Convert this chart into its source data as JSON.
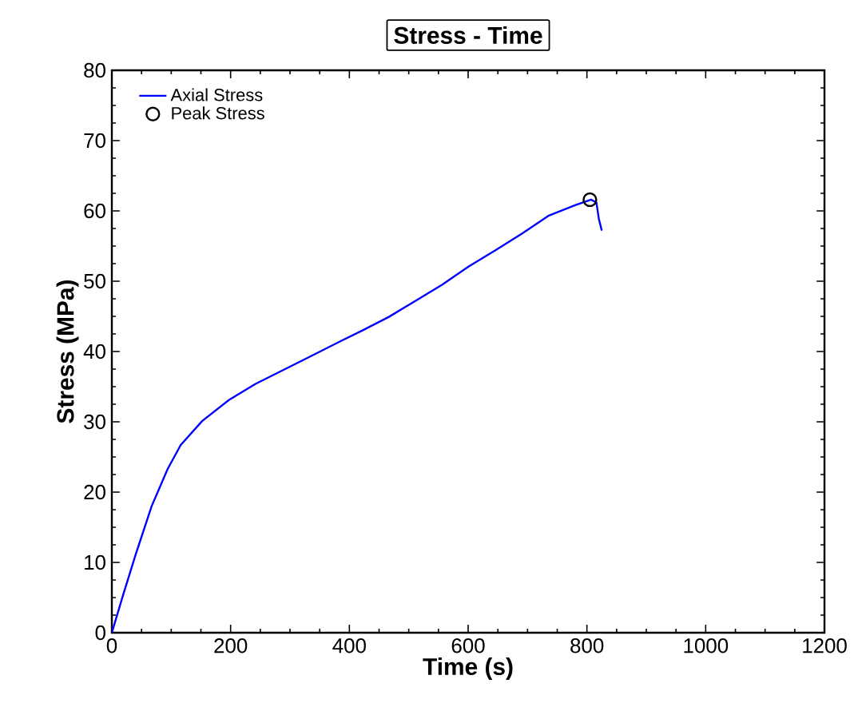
{
  "chart_data": {
    "type": "line",
    "title": "Stress  -  Time",
    "xlabel": "Time  (s)",
    "ylabel": "Stress  (MPa)",
    "xlim": [
      0,
      1200
    ],
    "xticks": [
      0,
      200,
      400,
      600,
      800,
      1000,
      1200
    ],
    "ylim": [
      0,
      80
    ],
    "yticks": [
      0,
      10,
      20,
      30,
      40,
      50,
      60,
      70,
      80
    ],
    "legend": "top left",
    "grid": false,
    "series": [
      {
        "name": "Axial  Stress",
        "color": "#0000ff",
        "marker": "none",
        "x": [
          0,
          18,
          40,
          67,
          94,
          116,
          152,
          197,
          242,
          287,
          332,
          386,
          422,
          466,
          511,
          556,
          601,
          646,
          691,
          735,
          780,
          807,
          816,
          820,
          825
        ],
        "values": [
          0,
          5.1,
          11.1,
          18,
          23.3,
          26.7,
          30.1,
          33.1,
          35.4,
          37.3,
          39.2,
          41.5,
          43,
          44.9,
          47.2,
          49.5,
          52.1,
          54.4,
          56.8,
          59.3,
          60.8,
          61.6,
          61.2,
          58.9,
          57.2
        ]
      },
      {
        "name": "Peak  Stress",
        "type": "scatter",
        "color": "#000000",
        "marker": "circle",
        "x": [
          805
        ],
        "values": [
          61.6
        ]
      }
    ]
  }
}
